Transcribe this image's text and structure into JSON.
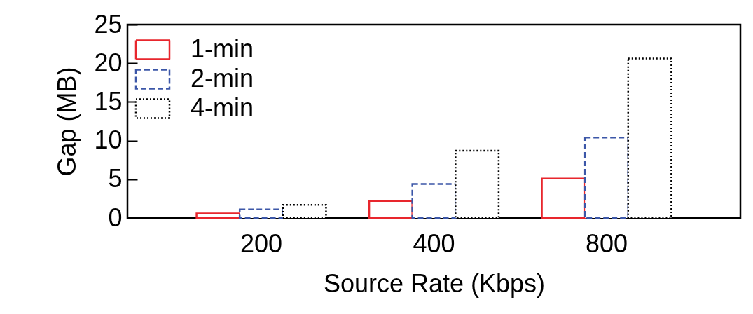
{
  "chart_data": {
    "type": "bar",
    "xlabel": "Source Rate (Kbps)",
    "ylabel": "Gap (MB)",
    "categories": [
      "200",
      "400",
      "800"
    ],
    "series": [
      {
        "name": "1-min",
        "color": "#e8262d",
        "line_style": "solid",
        "values": [
          0.6,
          2.2,
          5.1
        ]
      },
      {
        "name": "2-min",
        "color": "#3c57a8",
        "line_style": "dashed",
        "values": [
          1.1,
          4.4,
          10.4
        ]
      },
      {
        "name": "4-min",
        "color": "#000000",
        "line_style": "dotted",
        "values": [
          1.7,
          8.7,
          20.6
        ]
      }
    ],
    "ylim": [
      0,
      25
    ],
    "yticks": [
      0,
      5,
      10,
      15,
      20,
      25
    ],
    "grid": false,
    "legend": "top left"
  }
}
